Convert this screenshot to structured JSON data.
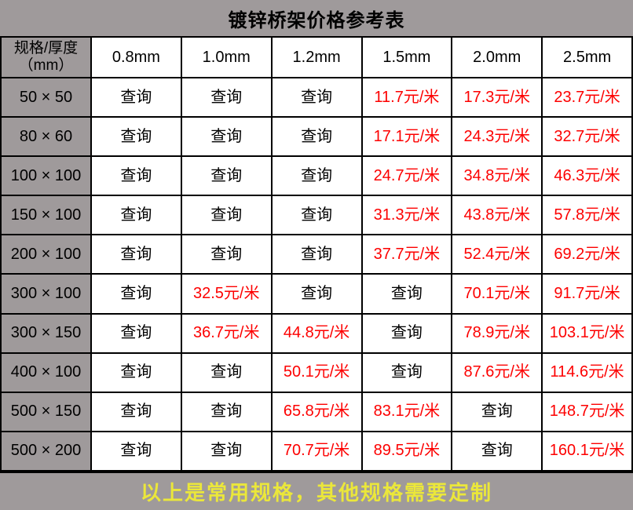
{
  "title": "镀锌桥架价格参考表",
  "table": {
    "corner_header": "规格/厚度\n（mm）",
    "columns": [
      "0.8mm",
      "1.0mm",
      "1.2mm",
      "1.5mm",
      "2.0mm",
      "2.5mm"
    ],
    "rows": [
      {
        "spec": "50 × 50",
        "cells": [
          "查询",
          "查询",
          "查询",
          "11.7元/米",
          "17.3元/米",
          "23.7元/米"
        ]
      },
      {
        "spec": "80 × 60",
        "cells": [
          "查询",
          "查询",
          "查询",
          "17.1元/米",
          "24.3元/米",
          "32.7元/米"
        ]
      },
      {
        "spec": "100 × 100",
        "cells": [
          "查询",
          "查询",
          "查询",
          "24.7元/米",
          "34.8元/米",
          "46.3元/米"
        ]
      },
      {
        "spec": "150 × 100",
        "cells": [
          "查询",
          "查询",
          "查询",
          "31.3元/米",
          "43.8元/米",
          "57.8元/米"
        ]
      },
      {
        "spec": "200 × 100",
        "cells": [
          "查询",
          "查询",
          "查询",
          "37.7元/米",
          "52.4元/米",
          "69.2元/米"
        ]
      },
      {
        "spec": "300 × 100",
        "cells": [
          "查询",
          "32.5元/米",
          "查询",
          "查询",
          "70.1元/米",
          "91.7元/米"
        ]
      },
      {
        "spec": "300 × 150",
        "cells": [
          "查询",
          "36.7元/米",
          "44.8元/米",
          "查询",
          "78.9元/米",
          "103.1元/米"
        ]
      },
      {
        "spec": "400 × 100",
        "cells": [
          "查询",
          "查询",
          "50.1元/米",
          "查询",
          "87.6元/米",
          "114.6元/米"
        ]
      },
      {
        "spec": "500 × 150",
        "cells": [
          "查询",
          "查询",
          "65.8元/米",
          "83.1元/米",
          "查询",
          "148.7元/米"
        ]
      },
      {
        "spec": "500 × 200",
        "cells": [
          "查询",
          "查询",
          "70.7元/米",
          "89.5元/米",
          "查询",
          "160.1元/米"
        ]
      }
    ]
  },
  "footer": "以上是常用规格，其他规格需要定制",
  "colors": {
    "gray": "#9f9a9b",
    "price_red": "#fd0000",
    "footer_yellow": "#ebe73a",
    "border_black": "#000000"
  }
}
